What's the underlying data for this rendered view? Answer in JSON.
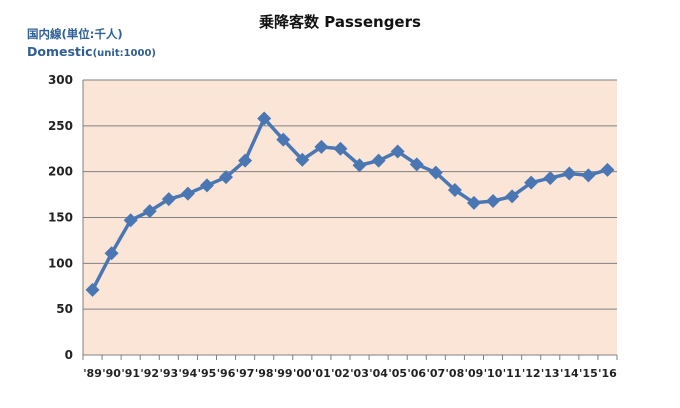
{
  "chart_data": {
    "type": "line",
    "title": "乗降客数 Passengers",
    "unit_label_jp": "国内線(単位:千人)",
    "unit_label_en_main": "Domestic",
    "unit_label_en_sub": "(unit:1000)",
    "categories": [
      "'89",
      "'90",
      "'91",
      "'92",
      "'93",
      "'94",
      "'95",
      "'96",
      "'97",
      "'98",
      "'99",
      "'00",
      "'01",
      "'02",
      "'03",
      "'04",
      "'05",
      "'06",
      "'07",
      "'08",
      "'09",
      "'10",
      "'11",
      "'12",
      "'13",
      "'14",
      "'15",
      "'16"
    ],
    "series": [
      {
        "values": [
          71,
          111,
          147,
          157,
          170,
          176,
          185,
          194,
          212,
          258,
          235,
          213,
          227,
          225,
          207,
          212,
          222,
          208,
          199,
          180,
          166,
          168,
          173,
          188,
          193,
          198,
          196,
          202
        ]
      }
    ],
    "ylim": [
      0,
      300
    ],
    "yticks": [
      "0",
      "50",
      "100",
      "150",
      "200",
      "250",
      "300"
    ],
    "grid": true,
    "colors": {
      "plot_background": "#fbe5d6",
      "series": "#4a77b4",
      "grid": "#808080"
    }
  }
}
